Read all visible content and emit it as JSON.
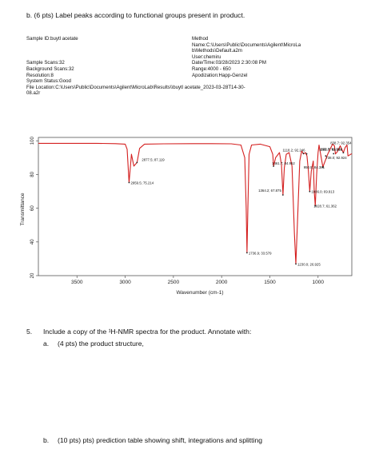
{
  "part_b_ir": "b.   (6 pts) Label peaks according to functional groups present in product.",
  "meta_left": [
    "Sample ID:buytl acetate",
    "",
    "",
    "",
    "Sample Scans:32",
    "Background Scans:32",
    "Resolution:8",
    "System Status:Good",
    "File Location:C:\\Users\\Public\\Documents\\Agilent\\MicroLab\\Results\\\\buytl acetate_2023-03-28T14-30-",
    "08.a2r"
  ],
  "meta_right": [
    "Method",
    "Name:C:\\Users\\Public\\Documents\\Agilent\\MicroLa",
    "b\\Methods\\Default.a2m",
    "User:chemiru",
    "Date/Time:03/28/2023 2:30:08 PM",
    "Range:4000 - 650",
    "Apodization:Happ-Genzel"
  ],
  "q5_number": "5.",
  "q5_text": "Include a copy of the ¹H-NMR spectra for the product. Annotate with:",
  "q5a_letter": "a.",
  "q5a_text": "(4 pts) the product structure,",
  "q5b_letter": "b.",
  "q5b_text": "(10 pts) pts) prediction table showing shift, integrations and splitting",
  "chart_data": {
    "type": "line",
    "xlabel": "Wavenumber (cm-1)",
    "ylabel": "Transmittance",
    "xlim": [
      3900,
      650
    ],
    "ylim": [
      20,
      102
    ],
    "x_ticks": [
      "3500",
      "3000",
      "2500",
      "2000",
      "1500",
      "1000"
    ],
    "x_tick_values": [
      3500,
      3000,
      2500,
      2000,
      1500,
      1000
    ],
    "y_ticks": [
      "100",
      "80",
      "60",
      "40",
      "20"
    ],
    "y_tick_values": [
      100,
      80,
      60,
      40,
      20
    ],
    "series_color": "#d42020",
    "series": [
      {
        "x": [
          3900,
          3600,
          3300,
          3100,
          3000,
          2980,
          2960,
          2935,
          2910,
          2877,
          2850,
          2800,
          2600,
          2300,
          2100,
          1900,
          1800,
          1760,
          1745,
          1737,
          1728,
          1715,
          1690,
          1600,
          1500,
          1470,
          1461,
          1440,
          1400,
          1380,
          1364,
          1350,
          1330,
          1300,
          1270,
          1245,
          1230,
          1215,
          1190,
          1170,
          1151,
          1130,
          1115,
          1100,
          1086,
          1070,
          1050,
          1040,
          1029,
          1015,
          1000,
          990,
          950,
          900,
          850,
          830,
          820,
          800,
          770,
          738,
          720,
          700,
          690,
          650
        ],
        "y": [
          98.5,
          98.5,
          98.5,
          98.3,
          98.0,
          95.0,
          75.2,
          92.0,
          85.0,
          87.1,
          95.5,
          98.0,
          98.2,
          98.3,
          98.3,
          98.2,
          97.5,
          90.0,
          60.0,
          33.6,
          60.0,
          92.0,
          97.5,
          98.0,
          96.5,
          92.0,
          85.0,
          90.0,
          93.0,
          86.0,
          67.9,
          84.0,
          92.0,
          93.0,
          85.0,
          45.0,
          26.9,
          50.0,
          88.0,
          94.0,
          92.2,
          93.0,
          91.0,
          82.0,
          69.9,
          82.0,
          88.0,
          70.0,
          61.4,
          80.0,
          93.0,
          97.5,
          84.4,
          92.0,
          98.0,
          97.0,
          92.2,
          93.5,
          97.0,
          92.9,
          96.0,
          97.5,
          91.0,
          92.4
        ]
      }
    ],
    "annotations": [
      {
        "label": "2877.5; 87.119",
        "x": 2877.5,
        "y": 87.119
      },
      {
        "label": "2959.5; 75.214",
        "x": 2959.5,
        "y": 75.214
      },
      {
        "label": "1736.9; 33.579",
        "x": 1736.9,
        "y": 33.579
      },
      {
        "label": "1230.0; 26.925",
        "x": 1230.0,
        "y": 26.925
      },
      {
        "label": "838.7; 92.354",
        "x": 838.7,
        "y": 92.354
      },
      {
        "label": "920.7; 91.022",
        "x": 920.7,
        "y": 91.022
      },
      {
        "label": "1118.2; 92.246",
        "x": 1118.2,
        "y": 92.246
      },
      {
        "label": "1151.7; 92.446",
        "x": 1151.7,
        "y": 92.446
      },
      {
        "label": "1461.7; 84.952",
        "x": 1461.7,
        "y": 84.952
      },
      {
        "label": "950.5; 84.381",
        "x": 950.5,
        "y": 84.381
      },
      {
        "label": "738.0; 92.924",
        "x": 738.0,
        "y": 92.924
      },
      {
        "label": "1364.2; 67.875",
        "x": 1364.2,
        "y": 67.875
      },
      {
        "label": "1086.0; 69.913",
        "x": 1086.0,
        "y": 69.913
      },
      {
        "label": "1028.7; 61.362",
        "x": 1028.7,
        "y": 61.362
      }
    ]
  }
}
